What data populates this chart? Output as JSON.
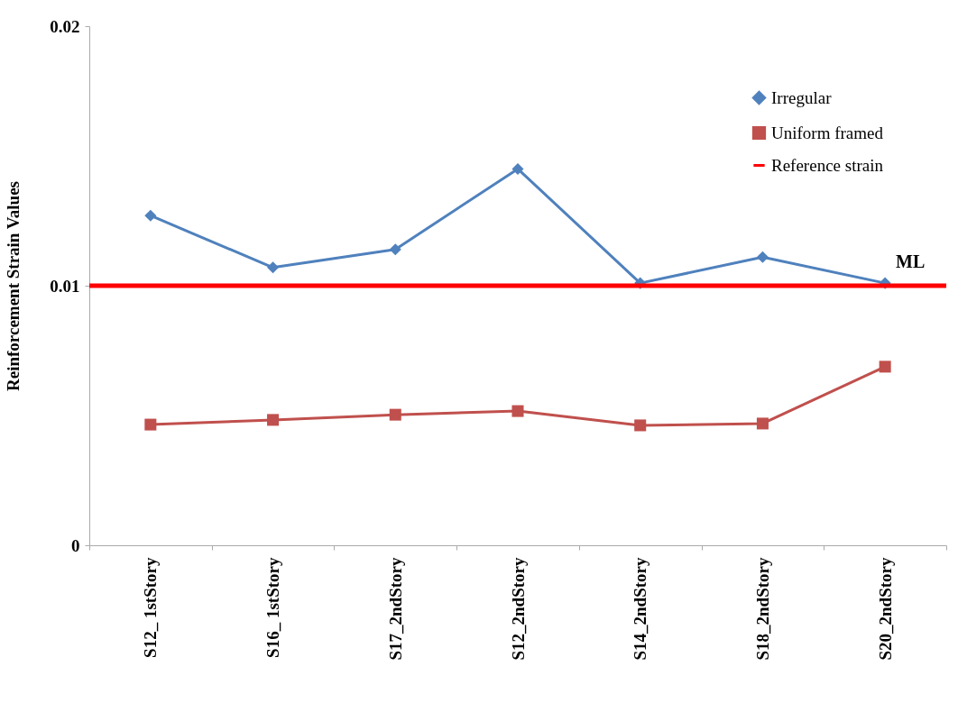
{
  "chart_data": {
    "type": "line",
    "ylabel": "Reinforcement Strain Values",
    "categories": [
      "S12_ 1stStory",
      "S16_ 1stStory",
      "S17_2ndStory",
      "S12_2ndStory",
      "S14_2ndStory",
      "S18_2ndStory",
      "S20_2ndStory"
    ],
    "series": [
      {
        "name": "Irregular",
        "color": "#4f81bd",
        "marker": "diamond",
        "values": [
          0.0127,
          0.0107,
          0.0114,
          0.0145,
          0.0101,
          0.0111,
          0.0101
        ]
      },
      {
        "name": "Uniform framed",
        "color": "#c0504d",
        "marker": "square",
        "values": [
          0.00465,
          0.00483,
          0.00503,
          0.00517,
          0.00462,
          0.00469,
          0.00688
        ]
      }
    ],
    "ref_lines": [
      {
        "axis": "y",
        "value": 0.01,
        "label": "Reference strain",
        "color": "#ff0000"
      }
    ],
    "annotations": [
      {
        "text": "ML",
        "x": "S20_2ndStory",
        "y": 0.01
      }
    ],
    "ylim": [
      0,
      0.02
    ],
    "yticks": [
      0,
      0.01,
      0.02
    ],
    "grid": false,
    "legend": "top right"
  }
}
